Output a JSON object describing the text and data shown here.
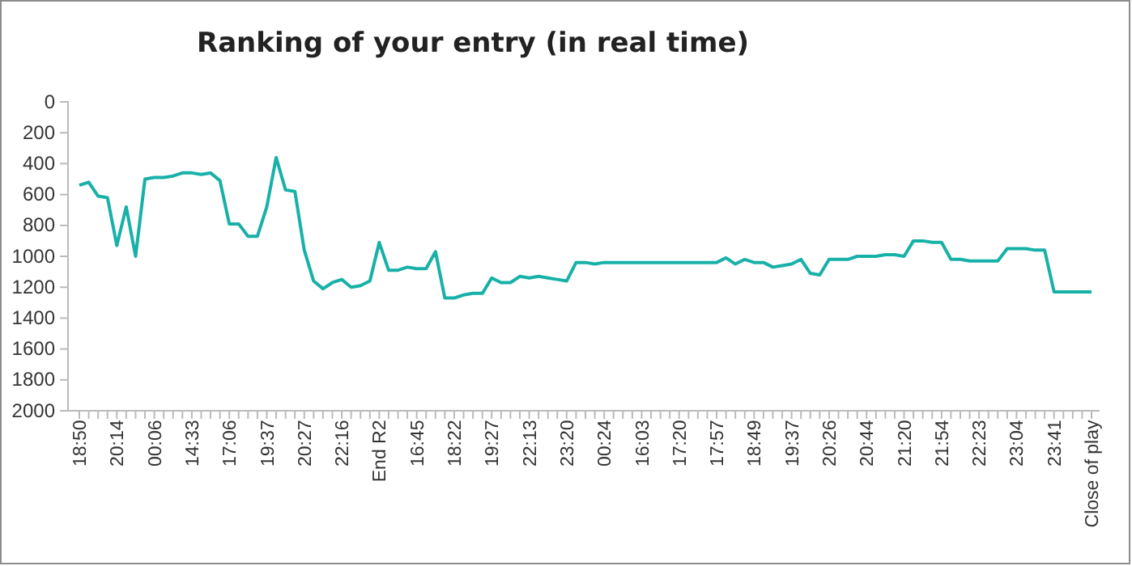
{
  "chart_data": {
    "type": "line",
    "title": "Ranking of your entry (in real time)",
    "categories": [
      "18:50",
      null,
      null,
      null,
      "20:14",
      null,
      null,
      null,
      "00:06",
      null,
      null,
      null,
      "14:33",
      null,
      null,
      null,
      "17:06",
      null,
      null,
      null,
      "19:37",
      null,
      null,
      null,
      "20:27",
      null,
      null,
      null,
      "22:16",
      null,
      null,
      null,
      "End R2",
      null,
      null,
      null,
      "16:45",
      null,
      null,
      null,
      "18:22",
      null,
      null,
      null,
      "19:27",
      null,
      null,
      null,
      "22:13",
      null,
      null,
      null,
      "23:20",
      null,
      null,
      null,
      "00:24",
      null,
      null,
      null,
      "16:03",
      null,
      null,
      null,
      "17:20",
      null,
      null,
      null,
      "17:57",
      null,
      null,
      null,
      "18:49",
      null,
      null,
      null,
      "19:37",
      null,
      null,
      null,
      "20:26",
      null,
      null,
      null,
      "20:44",
      null,
      null,
      null,
      "21:20",
      null,
      null,
      null,
      "21:54",
      null,
      null,
      null,
      "22:23",
      null,
      null,
      null,
      "23:04",
      null,
      null,
      null,
      "23:41",
      null,
      null,
      null,
      "Close of play"
    ],
    "series": [
      {
        "color": "#17b1a8",
        "values": [
          540,
          520,
          610,
          620,
          930,
          680,
          1000,
          500,
          490,
          490,
          480,
          460,
          460,
          470,
          460,
          510,
          790,
          790,
          870,
          870,
          680,
          360,
          570,
          580,
          960,
          1160,
          1210,
          1170,
          1150,
          1200,
          1190,
          1160,
          910,
          1090,
          1090,
          1070,
          1080,
          1080,
          970,
          1270,
          1270,
          1250,
          1240,
          1240,
          1140,
          1170,
          1170,
          1130,
          1140,
          1130,
          1140,
          1150,
          1160,
          1040,
          1040,
          1050,
          1040,
          1040,
          1040,
          1040,
          1040,
          1040,
          1040,
          1040,
          1040,
          1040,
          1040,
          1040,
          1040,
          1010,
          1050,
          1020,
          1040,
          1040,
          1070,
          1060,
          1050,
          1020,
          1110,
          1120,
          1020,
          1020,
          1020,
          1000,
          1000,
          1000,
          990,
          990,
          1000,
          900,
          900,
          910,
          910,
          1020,
          1020,
          1030,
          1030,
          1030,
          1030,
          950,
          950,
          950,
          960,
          960,
          1230,
          1230,
          1230,
          1230,
          1230
        ]
      }
    ],
    "ylim": [
      2000,
      0
    ],
    "yticks": [
      0,
      200,
      400,
      600,
      800,
      1000,
      1200,
      1400,
      1600,
      1800,
      2000
    ],
    "grid": false,
    "marker": "none",
    "line_style": "solid"
  }
}
